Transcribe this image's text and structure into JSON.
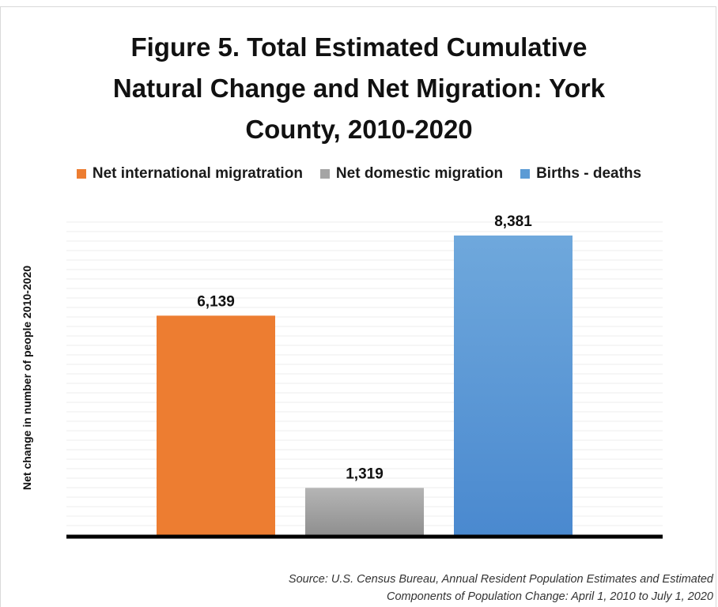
{
  "chart_data": {
    "type": "bar",
    "title_lines": [
      "Figure 5. Total Estimated Cumulative",
      "Natural Change and Net Migration:  York",
      "County, 2010-2020"
    ],
    "ylabel": "Net change in number of people 2010-2020",
    "series": [
      {
        "name": "Net international migratration",
        "value": 6139,
        "label": "6,139",
        "color": "#ED7D31"
      },
      {
        "name": "Net domestic migration",
        "value": 1319,
        "label": "1,319",
        "color": "#A5A5A5"
      },
      {
        "name": "Births  - deaths",
        "value": 8381,
        "label": "8,381",
        "color": "#5B9BD5"
      }
    ],
    "ylim": [
      0,
      9000
    ],
    "legend_position": "top"
  },
  "source_lines": [
    "Source: U.S. Census Bureau, Annual Resident Population Estimates and Estimated",
    "Components of Population Change: April 1, 2010 to July 1, 2020"
  ]
}
